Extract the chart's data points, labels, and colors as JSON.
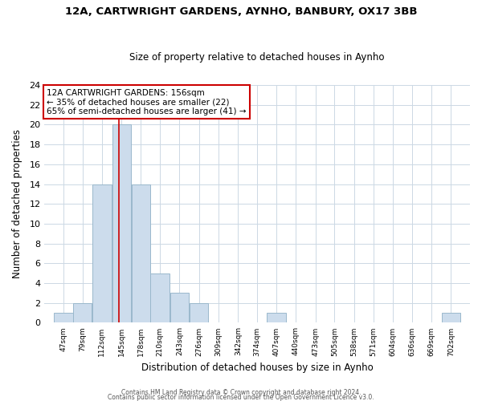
{
  "title": "12A, CARTWRIGHT GARDENS, AYNHO, BANBURY, OX17 3BB",
  "subtitle": "Size of property relative to detached houses in Aynho",
  "xlabel": "Distribution of detached houses by size in Aynho",
  "ylabel": "Number of detached properties",
  "bar_edges": [
    47,
    79,
    112,
    145,
    178,
    210,
    243,
    276,
    309,
    342,
    374,
    407,
    440,
    473,
    505,
    538,
    571,
    604,
    636,
    669,
    702
  ],
  "bar_heights": [
    1,
    2,
    14,
    20,
    14,
    5,
    3,
    2,
    0,
    0,
    0,
    1,
    0,
    0,
    0,
    0,
    0,
    0,
    0,
    0,
    1
  ],
  "bar_color": "#ccdcec",
  "bar_edgecolor": "#9ab8cc",
  "reference_line_x": 156,
  "reference_line_color": "#cc0000",
  "ylim": [
    0,
    24
  ],
  "yticks": [
    0,
    2,
    4,
    6,
    8,
    10,
    12,
    14,
    16,
    18,
    20,
    22,
    24
  ],
  "tick_labels": [
    "47sqm",
    "79sqm",
    "112sqm",
    "145sqm",
    "178sqm",
    "210sqm",
    "243sqm",
    "276sqm",
    "309sqm",
    "342sqm",
    "374sqm",
    "407sqm",
    "440sqm",
    "473sqm",
    "505sqm",
    "538sqm",
    "571sqm",
    "604sqm",
    "636sqm",
    "669sqm",
    "702sqm"
  ],
  "annotation_line1": "12A CARTWRIGHT GARDENS: 156sqm",
  "annotation_line2": "← 35% of detached houses are smaller (22)",
  "annotation_line3": "65% of semi-detached houses are larger (41) →",
  "annotation_box_edgecolor": "#cc0000",
  "annotation_box_facecolor": "#ffffff",
  "footer1": "Contains HM Land Registry data © Crown copyright and database right 2024.",
  "footer2": "Contains public sector information licensed under the Open Government Licence v3.0.",
  "background_color": "#ffffff",
  "grid_color": "#ccd8e4"
}
